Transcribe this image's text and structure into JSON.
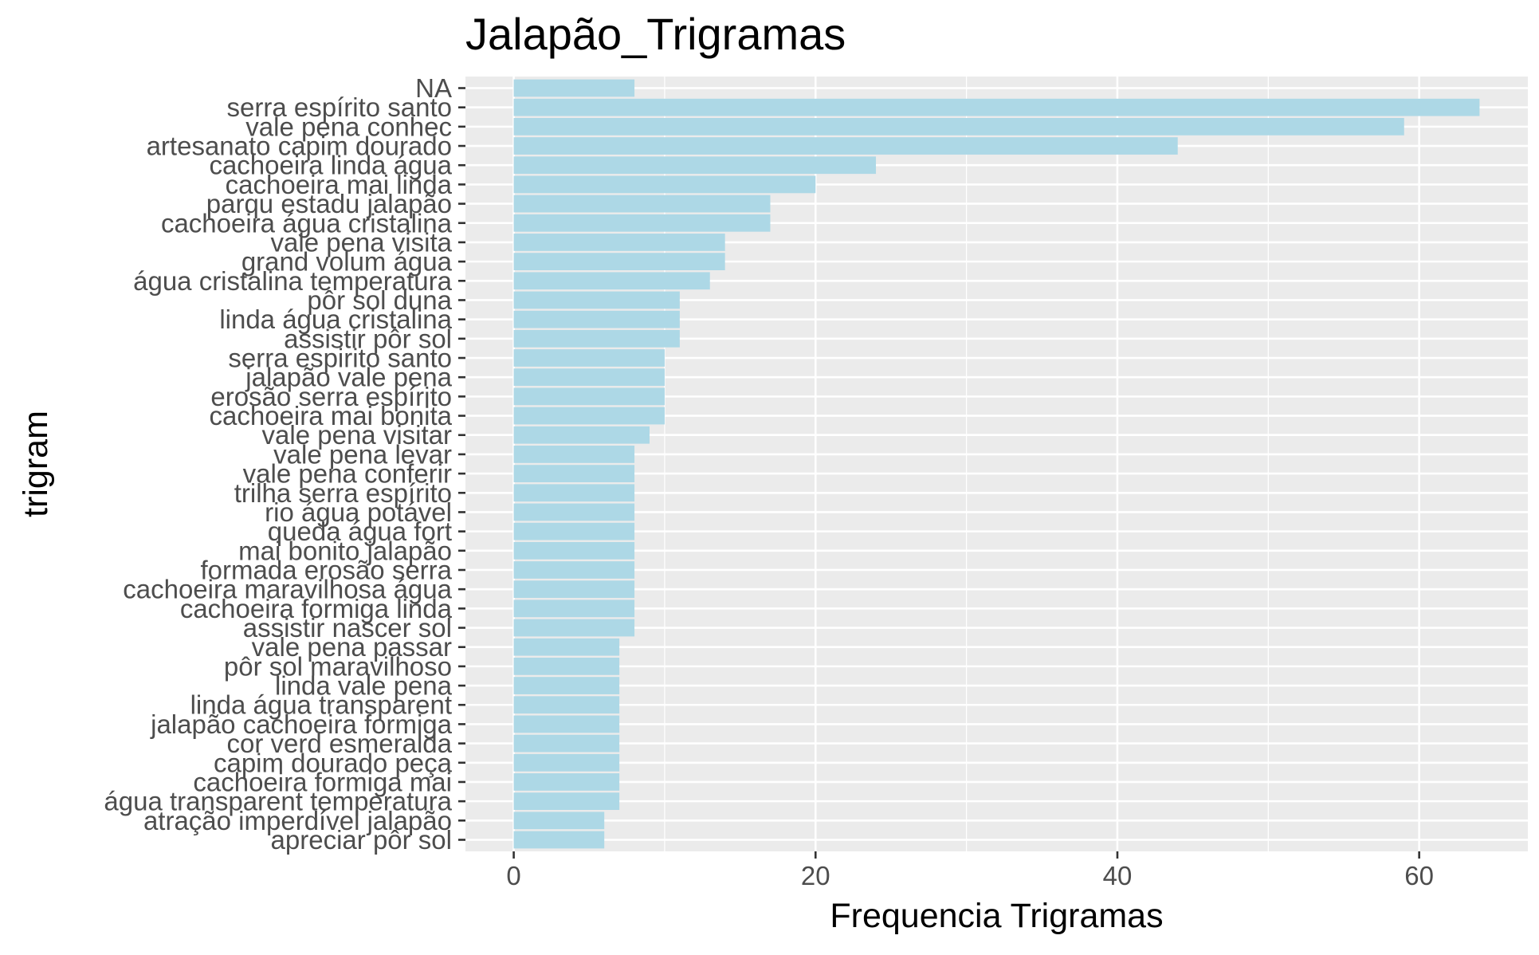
{
  "chart_data": {
    "type": "bar",
    "orientation": "horizontal",
    "title": "Jalapão_Trigramas",
    "xlabel": "Frequencia Trigramas",
    "ylabel": "trigram",
    "xlim": [
      -3.2,
      67.2
    ],
    "xticks": [
      0,
      20,
      40,
      60
    ],
    "grid": true,
    "legend": "none",
    "colors": {
      "bar": "#add8e6",
      "panel": "#ebebeb",
      "grid": "#ffffff",
      "tick_text": "#4d4d4d"
    },
    "categories": [
      "NA",
      "serra espírito santo",
      "vale pena conhec",
      "artesanato capim dourado",
      "cachoeira linda água",
      "cachoeira mai linda",
      "parqu estadu jalapão",
      "cachoeira água cristalina",
      "vale pena visita",
      "grand volum água",
      "água cristalina temperatura",
      "pôr sol duna",
      "linda água cristalina",
      "assistir pôr sol",
      "serra espirito santo",
      "jalapão vale pena",
      "erosão serra espírito",
      "cachoeira mai bonita",
      "vale pena visitar",
      "vale pena levar",
      "vale pena conferir",
      "trilha serra espírito",
      "rio água potável",
      "queda água fort",
      "mai bonito jalapão",
      "formada erosão serra",
      "cachoeira maravilhosa água",
      "cachoeira formiga linda",
      "assistir nascer sol",
      "vale pena passar",
      "pôr sol maravilhoso",
      "linda vale pena",
      "linda água transparent",
      "jalapão cachoeira formiga",
      "cor verd esmeralda",
      "capim dourado peça",
      "cachoeira formiga mai",
      "água transparent temperatura",
      "atração imperdível jalapão",
      "apreciar pôr sol"
    ],
    "values": [
      8,
      64,
      59,
      44,
      24,
      20,
      17,
      17,
      14,
      14,
      13,
      11,
      11,
      11,
      10,
      10,
      10,
      10,
      9,
      8,
      8,
      8,
      8,
      8,
      8,
      8,
      8,
      8,
      8,
      7,
      7,
      7,
      7,
      7,
      7,
      7,
      7,
      7,
      6,
      6
    ]
  }
}
